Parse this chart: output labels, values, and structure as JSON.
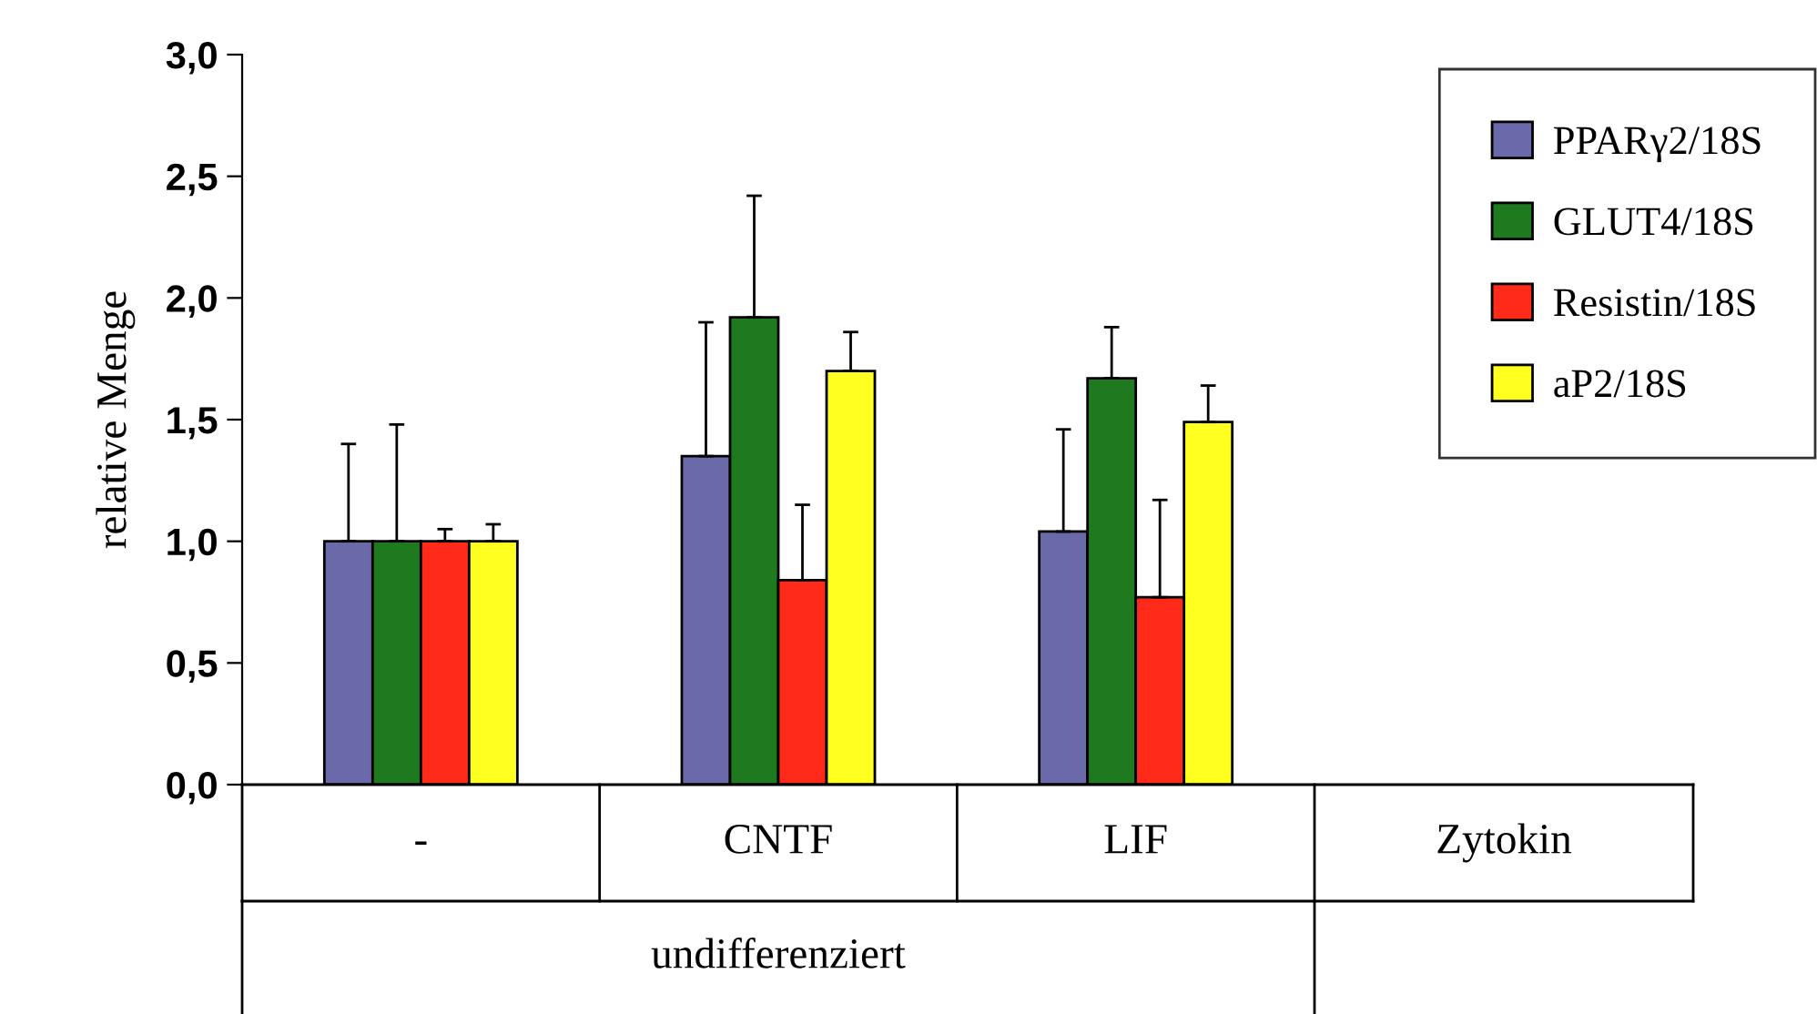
{
  "chart_data": {
    "type": "bar",
    "ylabel": "relative Menge",
    "categories": [
      "-",
      "CNTF",
      "LIF"
    ],
    "series": [
      {
        "name": "PPARγ2/18S",
        "color": "#6a6aaa",
        "values": [
          1.0,
          1.35,
          1.04
        ],
        "errors": [
          [
            1.0,
            1.4
          ],
          [
            1.35,
            1.9
          ],
          [
            1.04,
            1.46
          ]
        ]
      },
      {
        "name": "GLUT4/18S",
        "color": "#1f7a1f",
        "values": [
          1.0,
          1.92,
          1.67
        ],
        "errors": [
          [
            1.0,
            1.48
          ],
          [
            1.92,
            2.42
          ],
          [
            1.67,
            1.88
          ]
        ]
      },
      {
        "name": "Resistin/18S",
        "color": "#ff2a1a",
        "values": [
          1.0,
          0.84,
          0.77
        ],
        "errors": [
          [
            1.0,
            1.05
          ],
          [
            0.84,
            1.15
          ],
          [
            0.77,
            1.17
          ]
        ]
      },
      {
        "name": "aP2/18S",
        "color": "#ffff20",
        "values": [
          1.0,
          1.7,
          1.49
        ],
        "errors": [
          [
            1.0,
            1.07
          ],
          [
            1.7,
            1.86
          ],
          [
            1.49,
            1.64
          ]
        ]
      }
    ],
    "ylim": [
      0,
      3
    ],
    "yticks": [
      {
        "value": 0,
        "label": "0,0"
      },
      {
        "value": 0.5,
        "label": "0,5"
      },
      {
        "value": 1,
        "label": "1,0"
      },
      {
        "value": 1.5,
        "label": "1,5"
      },
      {
        "value": 2,
        "label": "2,0"
      },
      {
        "value": 2.5,
        "label": "2,5"
      },
      {
        "value": 3,
        "label": "3,0"
      }
    ],
    "annotations": [
      "Zytokin",
      "undifferenziert"
    ],
    "grid": false,
    "legend": "top right"
  }
}
